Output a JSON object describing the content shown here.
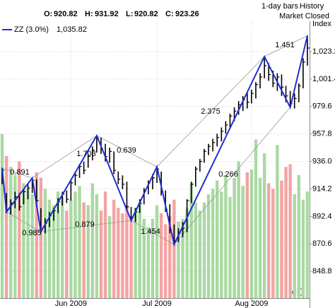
{
  "chart_data": {
    "type": "ohlc",
    "header": {
      "labels": [
        "O:",
        "H:",
        "L:",
        "C:"
      ],
      "values": [
        920.82,
        931.92,
        920.82,
        923.26
      ]
    },
    "status": [
      "1-day bars",
      "History",
      "Market Closed"
    ],
    "y_axis_label": "Index",
    "corner_label": "%",
    "xlim": [
      -0.5,
      71.5
    ],
    "xticks": [
      {
        "value": 16,
        "label": "Jun 2009"
      },
      {
        "value": 36,
        "label": "Jul 2009"
      },
      {
        "value": 58,
        "label": "Aug 2009"
      }
    ],
    "ylim": [
      827.6,
      1044.5
    ],
    "yticks": [
      {
        "value": 1023.2,
        "label": "1,023.2"
      },
      {
        "value": 1001.4,
        "label": "1,001.4"
      },
      {
        "value": 979.6,
        "label": "979.6"
      },
      {
        "value": 957.8,
        "label": "957.8"
      },
      {
        "value": 936.0,
        "label": "936.0"
      },
      {
        "value": 914.2,
        "label": "914.2"
      },
      {
        "value": 892.4,
        "label": "892.4"
      },
      {
        "value": 870.6,
        "label": "870.6"
      },
      {
        "value": 848.8,
        "label": "848.8"
      }
    ],
    "grid": true,
    "bar_color": "#000000",
    "high": [
      931,
      911,
      906,
      912,
      911,
      914,
      918,
      923,
      922,
      899,
      891,
      896,
      899,
      907,
      912,
      913,
      921,
      928,
      934,
      936,
      942,
      948,
      956,
      955,
      950,
      947,
      944,
      928,
      925,
      920,
      900,
      899,
      906,
      915,
      921,
      926,
      932,
      928,
      913,
      902,
      886,
      883,
      888,
      906,
      920,
      932,
      938,
      946,
      950,
      954,
      958,
      963,
      968,
      974,
      979,
      984,
      988,
      991,
      993,
      999,
      1006,
      1019,
      1014,
      1008,
      1006,
      1005,
      996,
      992,
      990,
      998,
      1018,
      1036
    ],
    "low": [
      918,
      895,
      894,
      899,
      897,
      902,
      906,
      911,
      903,
      880,
      879,
      884,
      889,
      895,
      901,
      903,
      905,
      917,
      923,
      926,
      931,
      937,
      943,
      942,
      936,
      935,
      926,
      918,
      914,
      897,
      889,
      888,
      895,
      902,
      910,
      914,
      919,
      909,
      896,
      879,
      870,
      872,
      876,
      880,
      903,
      916,
      928,
      935,
      941,
      944,
      948,
      952,
      958,
      963,
      968,
      973,
      976,
      978,
      982,
      986,
      994,
      1002,
      1000,
      995,
      992,
      988,
      983,
      979,
      978,
      983,
      994,
      1012
    ],
    "close": [
      929,
      898,
      903,
      908,
      900,
      912,
      915,
      921,
      905,
      882,
      887,
      893,
      897,
      904,
      910,
      906,
      919,
      925,
      932,
      929,
      940,
      945,
      954,
      946,
      940,
      944,
      929,
      922,
      918,
      900,
      891,
      896,
      903,
      913,
      919,
      923,
      930,
      912,
      898,
      882,
      873,
      879,
      883,
      905,
      918,
      930,
      936,
      944,
      948,
      951,
      955,
      960,
      965,
      972,
      976,
      981,
      985,
      983,
      990,
      997,
      1003,
      1012,
      1005,
      998,
      1003,
      995,
      988,
      982,
      986,
      996,
      1015,
      1026
    ],
    "volume": [
      6.0,
      5.2,
      4.8,
      4.5,
      5.0,
      4.2,
      4.0,
      3.8,
      4.6,
      4.4,
      4.0,
      3.6,
      3.4,
      3.9,
      3.7,
      3.2,
      3.6,
      3.9,
      4.1,
      3.5,
      3.4,
      4.2,
      3.8,
      3.2,
      3.9,
      3.0,
      3.6,
      3.3,
      3.1,
      3.4,
      3.0,
      3.3,
      3.5,
      2.9,
      2.6,
      2.9,
      3.4,
      3.1,
      2.7,
      3.0,
      3.6,
      2.8,
      2.9,
      3.3,
      4.2,
      3.5,
      3.2,
      3.5,
      3.8,
      4.0,
      4.3,
      3.9,
      4.5,
      3.7,
      4.4,
      5.0,
      4.1,
      4.6,
      4.7,
      5.8,
      4.4,
      5.3,
      4.2,
      4.0,
      5.6,
      4.3,
      4.8,
      4.9,
      3.8,
      4.5,
      3.6,
      3.9
    ],
    "volume_lim": [
      0,
      10
    ],
    "up_color": "#a9d9a2",
    "down_color": "#f4a3a3",
    "zigzag": {
      "name": "ZZ (3.0%)",
      "color": "#1f2fd0",
      "value_label": "1,035.82",
      "indices": [
        0,
        1,
        7,
        9,
        22,
        30,
        36,
        40,
        61,
        67,
        71
      ],
      "values": [
        930.7,
        896,
        922.9,
        880.3,
        956.5,
        889.2,
        931.8,
        870.2,
        1019.3,
        978.9,
        1035.82
      ],
      "ratios": [
        0.891,
        0.985,
        1.703,
        0.639,
        0.879,
        1.454,
        2.375,
        0.266,
        1.451
      ],
      "channel_color": "#9a9a9a"
    }
  }
}
